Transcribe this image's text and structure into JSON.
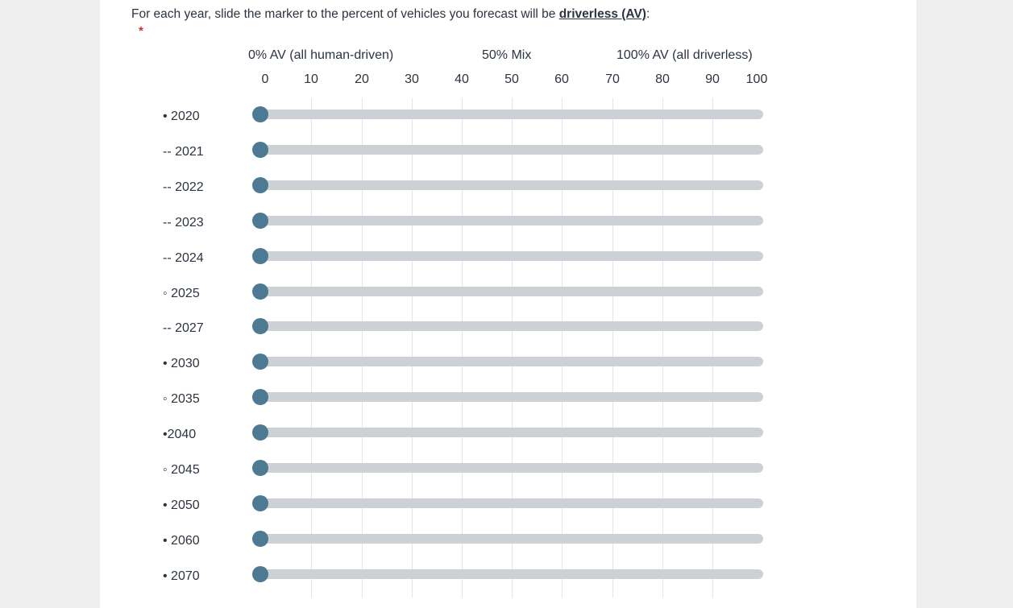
{
  "question": {
    "prefix": "For each year, slide the marker to the percent of vehicles you forecast will be ",
    "emphasis": "driverless (AV)",
    "suffix": ":",
    "required_mark": "*"
  },
  "scale": {
    "anchors": [
      "0% AV (all human-driven)",
      "50% Mix",
      "100% AV (all driverless)"
    ],
    "ticks": [
      "0",
      "10",
      "20",
      "30",
      "40",
      "50",
      "60",
      "70",
      "80",
      "90",
      "100"
    ],
    "min": 0,
    "max": 100
  },
  "rows": [
    {
      "label": "• 2020",
      "value": 0
    },
    {
      "label": "-- 2021",
      "value": 0
    },
    {
      "label": "-- 2022",
      "value": 0
    },
    {
      "label": "-- 2023",
      "value": 0
    },
    {
      "label": "-- 2024",
      "value": 0
    },
    {
      "label": "◦ 2025",
      "value": 0
    },
    {
      "label": "-- 2027",
      "value": 0
    },
    {
      "label": "• 2030",
      "value": 0
    },
    {
      "label": "◦ 2035",
      "value": 0
    },
    {
      "label": "•2040",
      "value": 0
    },
    {
      "label": "◦ 2045",
      "value": 0
    },
    {
      "label": "• 2050",
      "value": 0
    },
    {
      "label": "• 2060",
      "value": 0
    },
    {
      "label": "• 2070",
      "value": 0
    }
  ],
  "colors": {
    "track": "#cdd0d4",
    "handle": "#4d7a92",
    "required": "#d0313a"
  }
}
